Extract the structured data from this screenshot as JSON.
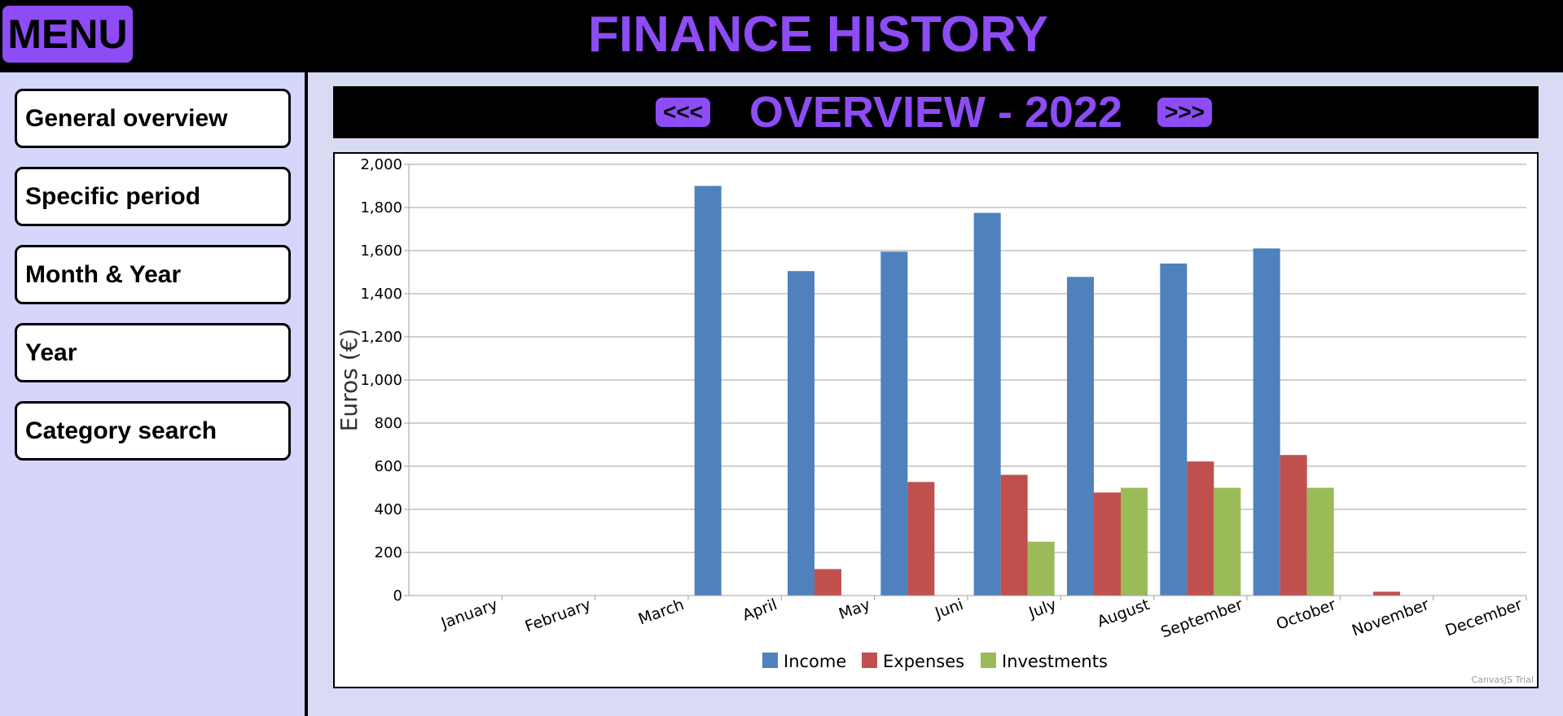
{
  "header": {
    "menu_label": "MENU",
    "title": "FINANCE HISTORY"
  },
  "sidebar": {
    "items": [
      {
        "label": "General overview"
      },
      {
        "label": "Specific period"
      },
      {
        "label": "Month & Year"
      },
      {
        "label": "Year"
      },
      {
        "label": "Category search"
      }
    ]
  },
  "period": {
    "prev_label": "<<<",
    "next_label": ">>>",
    "title": "OVERVIEW - 2022"
  },
  "colors": {
    "accent": "#8d4cf6",
    "income": "#4f81bd",
    "expenses": "#c0504d",
    "investments": "#9bbb59"
  },
  "chart_data": {
    "type": "bar",
    "title": "",
    "xlabel": "",
    "ylabel": "Euros (€)",
    "ylim": [
      0,
      2000
    ],
    "yticks": [
      0,
      200,
      400,
      600,
      800,
      1000,
      1200,
      1400,
      1600,
      1800,
      2000
    ],
    "ytick_labels": [
      "0",
      "200",
      "400",
      "600",
      "800",
      "1,000",
      "1,200",
      "1,400",
      "1,600",
      "1,800",
      "2,000"
    ],
    "grid": true,
    "legend_position": "bottom-center",
    "categories": [
      "January",
      "February",
      "March",
      "April",
      "May",
      "Juni",
      "July",
      "August",
      "September",
      "October",
      "November",
      "December"
    ],
    "series": [
      {
        "name": "Income",
        "color": "#4f81bd",
        "values": [
          0,
          0,
          0,
          1900,
          1505,
          1595,
          1775,
          1478,
          1540,
          1610,
          0,
          0
        ]
      },
      {
        "name": "Expenses",
        "color": "#c0504d",
        "values": [
          0,
          0,
          0,
          0,
          123,
          527,
          560,
          478,
          622,
          652,
          18,
          0
        ]
      },
      {
        "name": "Investments",
        "color": "#9bbb59",
        "values": [
          0,
          0,
          0,
          0,
          0,
          0,
          250,
          500,
          500,
          500,
          0,
          0
        ]
      }
    ],
    "watermark": "CanvasJS Trial"
  }
}
